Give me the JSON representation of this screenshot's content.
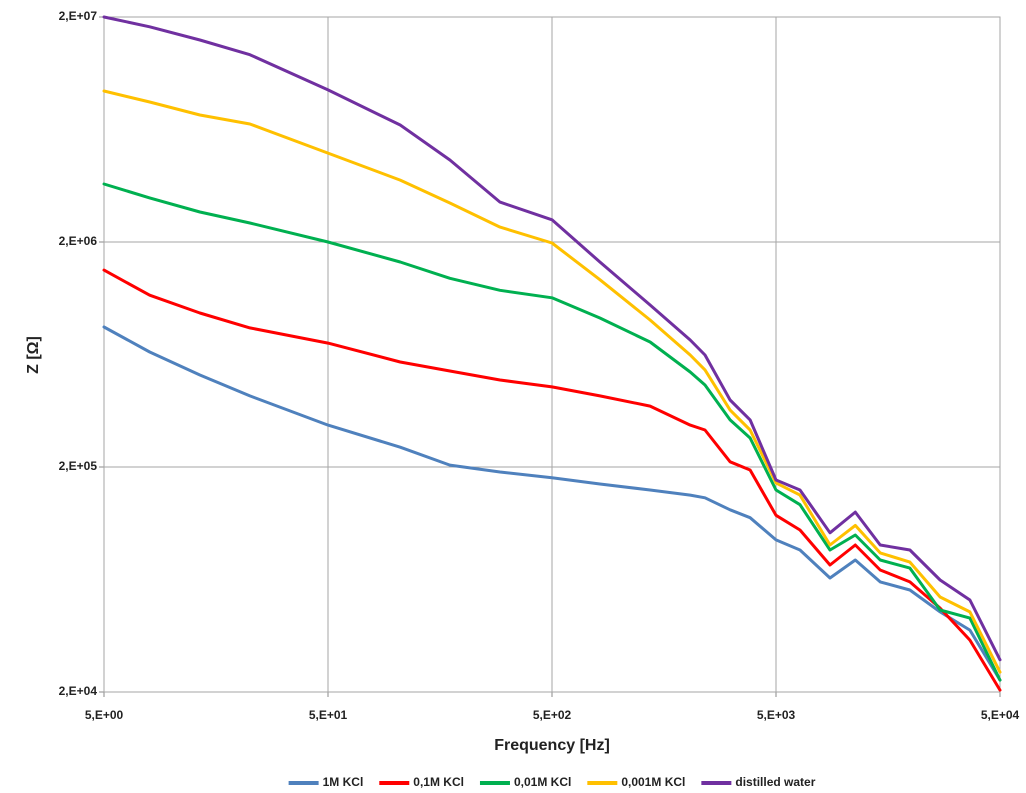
{
  "chart_data": {
    "type": "line",
    "x_label": "Frequency [Hz]",
    "y_label": "Z [Ω]",
    "xscale": "log",
    "yscale": "log",
    "grid": true,
    "legend": "bottom",
    "xlim": [
      5,
      50000
    ],
    "ylim": [
      20000,
      20000000
    ],
    "xticks": [
      {
        "value": 5,
        "label": "5,E+00"
      },
      {
        "value": 50,
        "label": "5,E+01"
      },
      {
        "value": 500,
        "label": "5,E+02"
      },
      {
        "value": 5000,
        "label": "5,E+03"
      },
      {
        "value": 50000,
        "label": "5,E+04"
      }
    ],
    "yticks": [
      {
        "value": 20000,
        "label": "2,E+04"
      },
      {
        "value": 200000,
        "label": "2,E+05"
      },
      {
        "value": 2000000,
        "label": "2,E+06"
      },
      {
        "value": 20000000,
        "label": "2,E+07"
      }
    ],
    "x": [
      5,
      8,
      13.4,
      22.4,
      50,
      105,
      175,
      293,
      500,
      818,
      1370,
      2070,
      2410,
      3120,
      3830,
      5000,
      6400,
      8710,
      11300,
      14600,
      19800,
      27000,
      36700,
      50000
    ],
    "series": [
      {
        "name": "1M KCl",
        "color": "#4f81bd",
        "values": [
          838000,
          649000,
          513000,
          414000,
          307000,
          245000,
          204000,
          190000,
          179000,
          168000,
          158000,
          150000,
          146000,
          129000,
          119000,
          94800,
          85500,
          64200,
          77200,
          61700,
          56800,
          45400,
          37700,
          22600
        ]
      },
      {
        "name": "0,1M KCl",
        "color": "#ff0000",
        "values": [
          1500000,
          1160000,
          967000,
          830000,
          711000,
          586000,
          534000,
          487000,
          454000,
          414000,
          373000,
          307000,
          292000,
          211000,
          194000,
          122000,
          105000,
          73400,
          90000,
          69700,
          61700,
          47200,
          34000,
          20400
        ]
      },
      {
        "name": "0,01M KCl",
        "color": "#00b050",
        "values": [
          3620000,
          3140000,
          2720000,
          2430000,
          2000000,
          1630000,
          1380000,
          1220000,
          1130000,
          919000,
          719000,
          529000,
          463000,
          324000,
          269000,
          158000,
          136000,
          85500,
          99700,
          77200,
          71100,
          46300,
          42600,
          22600
        ]
      },
      {
        "name": "0,001M KCl",
        "color": "#ffc000",
        "values": [
          9380000,
          8380000,
          7340000,
          6690000,
          4970000,
          3770000,
          2980000,
          2330000,
          1980000,
          1360000,
          900000,
          629000,
          540000,
          358000,
          292000,
          170000,
          150000,
          90000,
          110000,
          83000,
          75600,
          52900,
          45400,
          24500
        ]
      },
      {
        "name": "distilled water",
        "color": "#7030a0",
        "values": [
          20000000,
          18100000,
          15800000,
          13600000,
          9480000,
          6620000,
          4630000,
          3010000,
          2510000,
          1630000,
          1050000,
          734000,
          629000,
          397000,
          324000,
          175000,
          158000,
          102000,
          126000,
          90000,
          85500,
          62900,
          51300,
          27800
        ]
      }
    ]
  }
}
